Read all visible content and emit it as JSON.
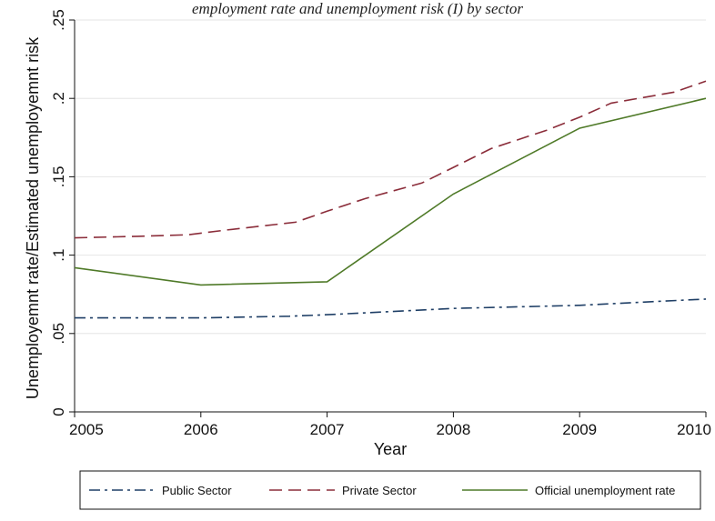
{
  "caption": "employment rate and unemployment risk (I) by sector",
  "chart_data": {
    "type": "line",
    "xlabel": "Year",
    "ylabel": "Unemployemnt rate/Estimated unemployemnt risk",
    "x_ticks": [
      "2005",
      "2006",
      "2007",
      "2008",
      "2009",
      "2010"
    ],
    "y_ticks": [
      "0",
      ".05",
      ".1",
      ".15",
      ".2",
      ".25"
    ],
    "xlim": [
      2005,
      2010
    ],
    "ylim": [
      0,
      0.25
    ],
    "grid": "horizontal",
    "legend_position": "bottom",
    "series": [
      {
        "name": "Public Sector",
        "style": "dash-dot",
        "color": "#1f3f66",
        "points": [
          [
            2005,
            0.06
          ],
          [
            2005.5,
            0.06
          ],
          [
            2006,
            0.06
          ],
          [
            2006.7,
            0.061
          ],
          [
            2007,
            0.062
          ],
          [
            2007.5,
            0.064
          ],
          [
            2008,
            0.066
          ],
          [
            2009,
            0.068
          ],
          [
            2009.5,
            0.07
          ],
          [
            2010,
            0.072
          ]
        ]
      },
      {
        "name": "Private Sector",
        "style": "dashed",
        "color": "#8b2d3a",
        "points": [
          [
            2005,
            0.111
          ],
          [
            2005.5,
            0.112
          ],
          [
            2005.9,
            0.113
          ],
          [
            2006.2,
            0.116
          ],
          [
            2006.75,
            0.121
          ],
          [
            2007,
            0.128
          ],
          [
            2007.3,
            0.136
          ],
          [
            2007.75,
            0.146
          ],
          [
            2008,
            0.156
          ],
          [
            2008.3,
            0.168
          ],
          [
            2008.75,
            0.18
          ],
          [
            2009,
            0.188
          ],
          [
            2009.25,
            0.197
          ],
          [
            2009.75,
            0.204
          ],
          [
            2010,
            0.211
          ]
        ]
      },
      {
        "name": "Official unemployment rate",
        "style": "solid",
        "color": "#4f7a28",
        "points": [
          [
            2005,
            0.092
          ],
          [
            2006,
            0.081
          ],
          [
            2007,
            0.083
          ],
          [
            2008,
            0.139
          ],
          [
            2009,
            0.181
          ],
          [
            2010,
            0.2
          ]
        ]
      }
    ]
  }
}
